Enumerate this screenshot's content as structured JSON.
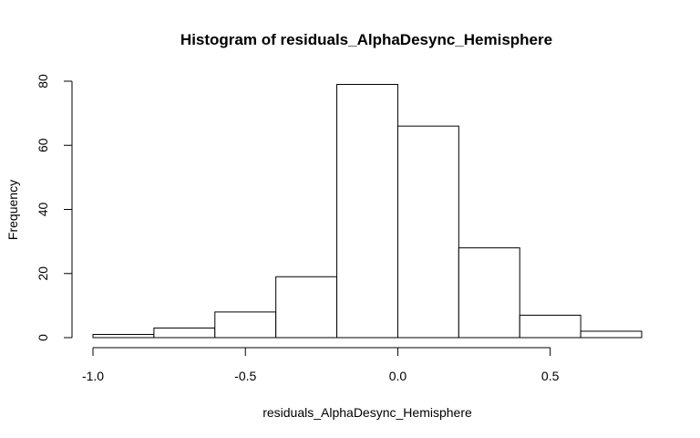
{
  "chart_data": {
    "type": "bar",
    "title": "Histogram of residuals_AlphaDesync_Hemisphere",
    "xlabel": "residuals_AlphaDesync_Hemisphere",
    "ylabel": "Frequency",
    "bins": [
      {
        "start": -1.0,
        "end": -0.8,
        "count": 1
      },
      {
        "start": -0.8,
        "end": -0.6,
        "count": 3
      },
      {
        "start": -0.6,
        "end": -0.4,
        "count": 8
      },
      {
        "start": -0.4,
        "end": -0.2,
        "count": 19
      },
      {
        "start": -0.2,
        "end": 0.0,
        "count": 79
      },
      {
        "start": 0.0,
        "end": 0.2,
        "count": 66
      },
      {
        "start": 0.2,
        "end": 0.4,
        "count": 28
      },
      {
        "start": 0.4,
        "end": 0.6,
        "count": 7
      },
      {
        "start": 0.6,
        "end": 0.8,
        "count": 2
      }
    ],
    "xlim": [
      -1.0,
      0.8
    ],
    "ylim": [
      0,
      80
    ],
    "x_ticks": [
      {
        "value": -1.0,
        "label": "-1.0"
      },
      {
        "value": -0.5,
        "label": "-0.5"
      },
      {
        "value": 0.0,
        "label": "0.0"
      },
      {
        "value": 0.5,
        "label": "0.5"
      }
    ],
    "y_ticks": [
      {
        "value": 0,
        "label": "0"
      },
      {
        "value": 20,
        "label": "20"
      },
      {
        "value": 40,
        "label": "40"
      },
      {
        "value": 60,
        "label": "60"
      },
      {
        "value": 80,
        "label": "80"
      }
    ],
    "grid": false,
    "bar_fill": "#ffffff",
    "bar_stroke": "#000000"
  }
}
